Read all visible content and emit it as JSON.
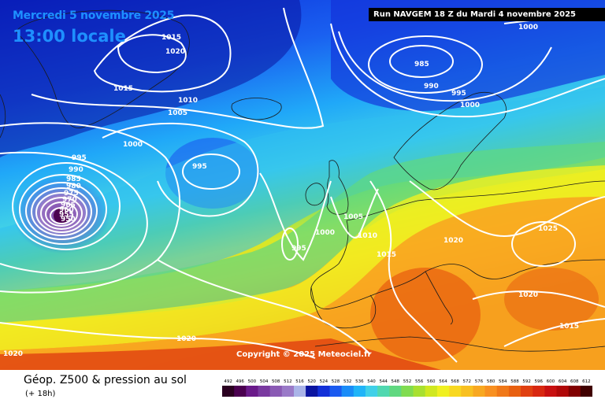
{
  "header": {
    "date": "Mercredi 5 novembre 2025",
    "time": "13:00 locale",
    "run": "Run NAVGEM 18 Z du Mardi 4 novembre 2025"
  },
  "copyright": "Copyright © 2025 Meteociel.fr",
  "footer": {
    "title": "Géop. Z500 & pression au sol",
    "subtitle": "(+ 18h)"
  },
  "legend": {
    "values": [
      "492",
      "496",
      "500",
      "504",
      "508",
      "512",
      "516",
      "520",
      "524",
      "528",
      "532",
      "536",
      "540",
      "544",
      "548",
      "552",
      "556",
      "560",
      "564",
      "568",
      "572",
      "576",
      "580",
      "584",
      "588",
      "592",
      "596",
      "600",
      "604",
      "608",
      "612"
    ],
    "colors": [
      "#2a0020",
      "#4b0050",
      "#6a1a8a",
      "#7a3aa0",
      "#8a5ab4",
      "#9a7ac8",
      "#aab4e8",
      "#0a14a0",
      "#1230d8",
      "#1a5af0",
      "#1a8cf8",
      "#20b4f8",
      "#40d0e8",
      "#50d8b0",
      "#60d880",
      "#80dc50",
      "#a8e030",
      "#d0e820",
      "#f0f020",
      "#f8d820",
      "#f8c020",
      "#f8a820",
      "#f89020",
      "#f07818",
      "#e86010",
      "#e04010",
      "#d82810",
      "#c81010",
      "#b00808",
      "#800000",
      "#400000"
    ]
  },
  "isobars": [
    "1015",
    "1020",
    "1015",
    "1010",
    "1005",
    "1000",
    "995",
    "995",
    "990",
    "985",
    "980",
    "975",
    "970",
    "965",
    "960",
    "955",
    "950",
    "985",
    "990",
    "995",
    "1000",
    "1000",
    "995",
    "1005",
    "1010",
    "1015",
    "1020",
    "1025",
    "1020",
    "1015",
    "1020",
    "1020",
    "1000"
  ],
  "map_colors": {
    "ocean_deep_blue": "#1030d8",
    "ocean_blue": "#1a78f0",
    "cyan": "#30c0f0",
    "green": "#60d880",
    "yellow": "#f0f020",
    "orange": "#f8a820",
    "red": "#e04010",
    "low_center": "#7a3aa0"
  }
}
